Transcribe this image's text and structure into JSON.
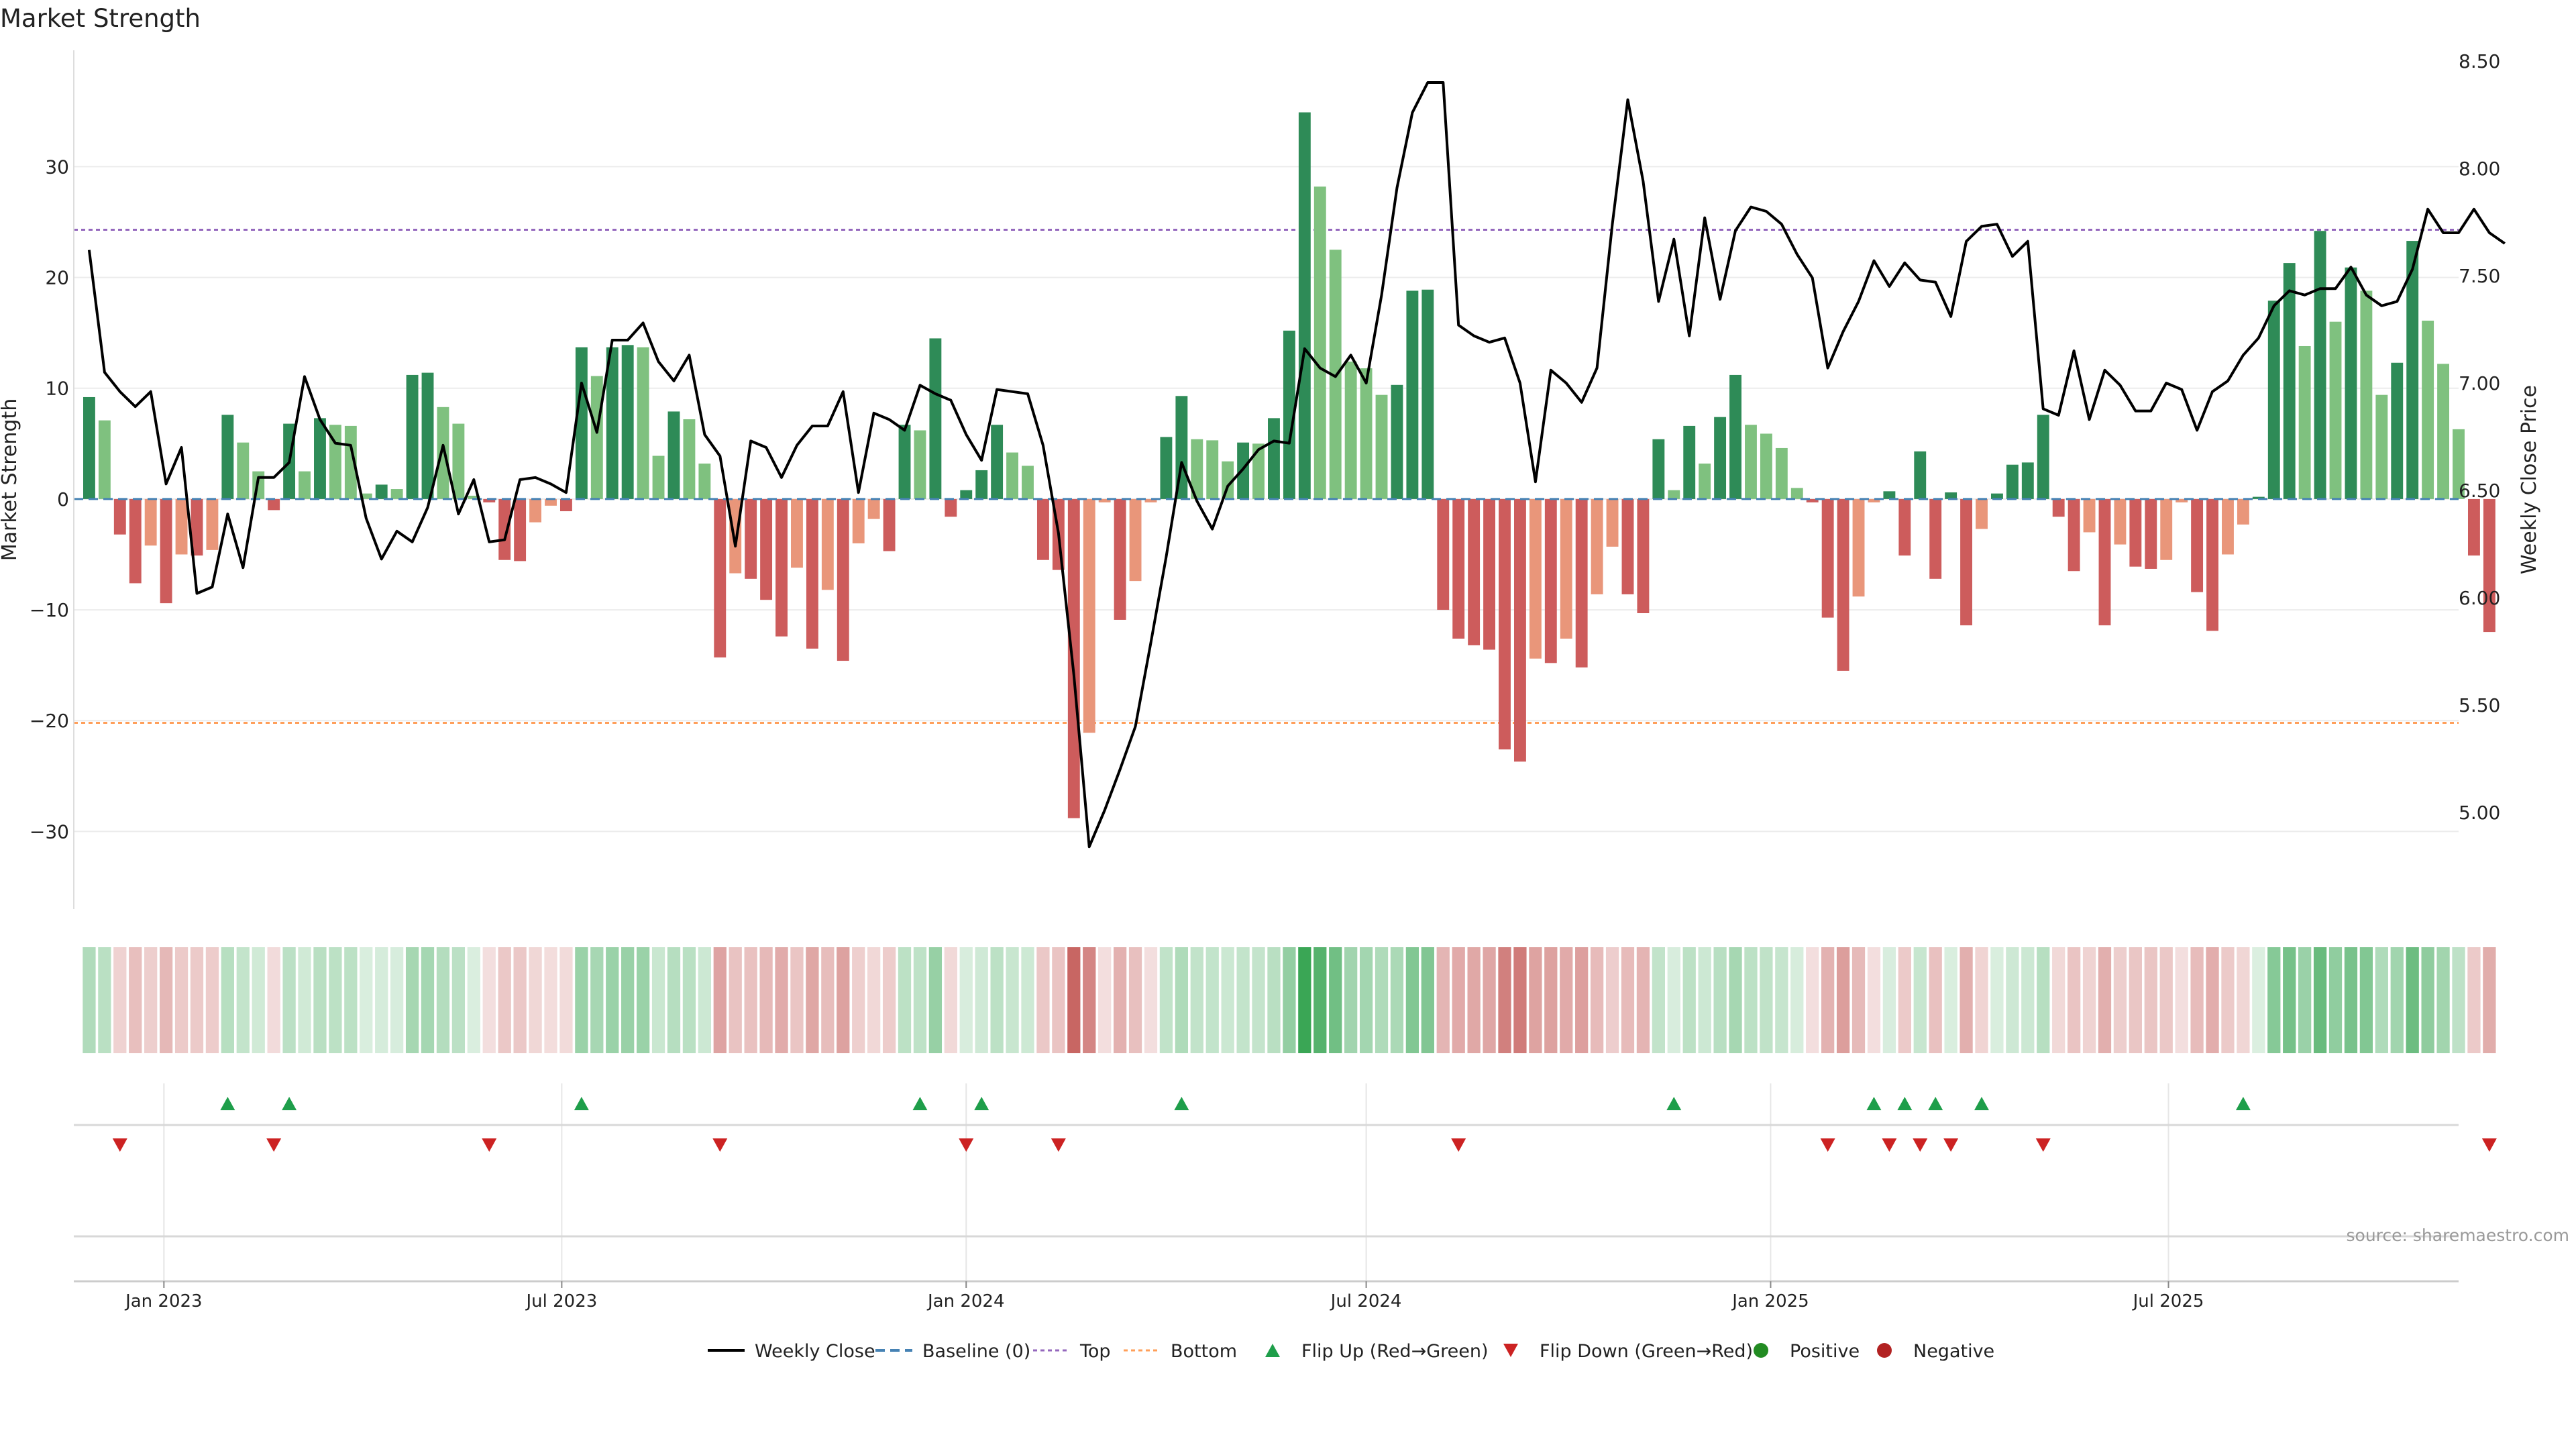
{
  "chart_data": {
    "type": "bar",
    "title": "Market Strength",
    "ylabel_left": "Market Strength",
    "ylabel_right": "Weekly Close Price",
    "ylim_left": [
      -37,
      40.5
    ],
    "yticks_left": [
      30,
      20,
      10,
      0,
      -10,
      -20,
      -30
    ],
    "yticklabels_left": [
      "30",
      "20",
      "10",
      "0",
      "−10",
      "−20",
      "−30"
    ],
    "ylim_right": [
      4.55,
      8.55
    ],
    "yticks_right": [
      8.5,
      8.0,
      7.5,
      7.0,
      6.5,
      6.0,
      5.5,
      5.0
    ],
    "yticklabels_right": [
      "8.50",
      "8.00",
      "7.50",
      "7.00",
      "6.50",
      "6.00",
      "5.50",
      "5.00"
    ],
    "x_range": [
      "2022-11-21",
      "2025-11-10"
    ],
    "x_tick_dates": [
      "2023-01-01",
      "2023-07-01",
      "2024-01-01",
      "2024-07-01",
      "2025-01-01",
      "2025-07-01"
    ],
    "x_tick_labels": [
      "Jan 2023",
      "Jul 2023",
      "Jan 2024",
      "Jul 2024",
      "Jan 2025",
      "Jul 2025"
    ],
    "week_start": "2022-11-28",
    "top_threshold": 24.3,
    "bottom_threshold": -20.2,
    "strength": [
      9.2,
      7.1,
      -3.2,
      -7.6,
      -4.2,
      -9.4,
      -5.0,
      -5.1,
      -4.6,
      7.6,
      5.1,
      2.5,
      -1.0,
      6.8,
      2.5,
      7.3,
      6.7,
      6.6,
      0.5,
      1.3,
      0.9,
      11.2,
      11.4,
      8.3,
      6.8,
      0.3,
      -0.3,
      -5.5,
      -5.6,
      -2.1,
      -0.6,
      -1.1,
      13.7,
      11.1,
      13.7,
      13.9,
      13.7,
      3.9,
      7.9,
      7.2,
      3.2,
      -14.3,
      -6.7,
      -7.2,
      -9.1,
      -12.4,
      -6.2,
      -13.5,
      -8.2,
      -14.6,
      -4.0,
      -1.8,
      -4.7,
      6.7,
      6.2,
      14.5,
      -1.6,
      0.8,
      2.6,
      6.7,
      4.2,
      3.0,
      -5.5,
      -6.4,
      -28.8,
      -21.1,
      -0.3,
      -10.9,
      -7.4,
      -0.3,
      5.6,
      9.3,
      5.4,
      5.3,
      3.4,
      5.1,
      5.0,
      7.3,
      15.2,
      34.9,
      28.2,
      22.5,
      12.4,
      11.8,
      9.4,
      10.3,
      18.8,
      18.9,
      -10.0,
      -12.6,
      -13.2,
      -13.6,
      -22.6,
      -23.7,
      -14.4,
      -14.8,
      -12.6,
      -15.2,
      -8.6,
      -4.3,
      -8.6,
      -10.3,
      5.4,
      0.8,
      6.6,
      3.2,
      7.4,
      11.2,
      6.7,
      5.9,
      4.6,
      1.0,
      -0.3,
      -10.7,
      -15.5,
      -8.8,
      -0.3,
      0.7,
      -5.1,
      4.3,
      -7.2,
      0.6,
      -11.4,
      -2.7,
      0.5,
      3.1,
      3.3,
      7.6,
      -1.6,
      -6.5,
      -3.0,
      -11.4,
      -4.1,
      -6.1,
      -6.3,
      -5.5,
      -0.3,
      -8.4,
      -11.9,
      -5.0,
      -2.3,
      0.2,
      17.9,
      21.3,
      13.8,
      24.2,
      16.0,
      20.9,
      18.8,
      9.4,
      12.3,
      23.3,
      16.1,
      12.2,
      6.3,
      -5.1,
      -12.0
    ],
    "close": [
      7.62,
      7.05,
      6.96,
      6.89,
      6.96,
      6.53,
      6.7,
      6.02,
      6.05,
      6.39,
      6.14,
      6.56,
      6.56,
      6.63,
      7.03,
      6.83,
      6.72,
      6.71,
      6.37,
      6.18,
      6.31,
      6.26,
      6.42,
      6.71,
      6.39,
      6.55,
      6.26,
      6.27,
      6.55,
      6.56,
      6.53,
      6.49,
      7.0,
      6.77,
      7.2,
      7.2,
      7.28,
      7.1,
      7.01,
      7.13,
      6.76,
      6.66,
      6.24,
      6.73,
      6.7,
      6.56,
      6.71,
      6.8,
      6.8,
      6.96,
      6.49,
      6.86,
      6.83,
      6.78,
      6.99,
      6.95,
      6.92,
      6.76,
      6.64,
      6.97,
      6.96,
      6.95,
      6.71,
      6.3,
      5.64,
      4.84,
      5.01,
      5.2,
      5.4,
      5.79,
      6.19,
      6.63,
      6.45,
      6.32,
      6.52,
      6.6,
      6.69,
      6.73,
      6.72,
      7.16,
      7.07,
      7.03,
      7.13,
      7.0,
      7.41,
      7.91,
      8.26,
      8.4,
      8.4,
      7.27,
      7.22,
      7.19,
      7.21,
      7.0,
      6.54,
      7.06,
      7.0,
      6.91,
      7.07,
      7.74,
      8.32,
      7.94,
      7.38,
      7.67,
      7.22,
      7.77,
      7.39,
      7.71,
      7.82,
      7.8,
      7.74,
      7.6,
      7.49,
      7.07,
      7.24,
      7.38,
      7.57,
      7.45,
      7.56,
      7.48,
      7.47,
      7.31,
      7.66,
      7.73,
      7.74,
      7.59,
      7.66,
      6.88,
      6.85,
      7.15,
      6.83,
      7.06,
      6.99,
      6.87,
      6.87,
      7.0,
      6.97,
      6.78,
      6.96,
      7.01,
      7.13,
      7.21,
      7.36,
      7.43,
      7.41,
      7.44,
      7.44,
      7.54,
      7.41,
      7.36,
      7.38,
      7.53,
      7.81,
      7.7,
      7.7,
      7.81,
      7.7,
      7.65
    ],
    "flip_up_weeks": [
      9,
      13,
      32,
      54,
      58,
      71,
      103,
      116,
      118,
      120,
      123,
      140
    ],
    "flip_down_weeks": [
      2,
      12,
      26,
      41,
      57,
      63,
      89,
      113,
      117,
      119,
      121,
      127,
      156
    ],
    "legend": [
      "Weekly Close",
      "Baseline (0)",
      "Top",
      "Bottom",
      "Flip Up (Red→Green)",
      "Flip Down (Green→Red)",
      "Positive",
      "Negative"
    ],
    "legend_placement": "bottom-center",
    "colors": {
      "positive_strong": "#2e8b57",
      "positive_light": "#7fc17f",
      "negative_strong": "#cd5c5c",
      "negative_light": "#e9967a",
      "close_line": "#000000",
      "baseline": "#4682b4",
      "top": "#9467bd",
      "bottom": "#ff9f5a",
      "flip_up": "#1e9e4a",
      "flip_down": "#cc2222",
      "dot_positive": "#228b22",
      "dot_negative": "#b22222"
    }
  },
  "watermark": "source: sharemaestro.com"
}
